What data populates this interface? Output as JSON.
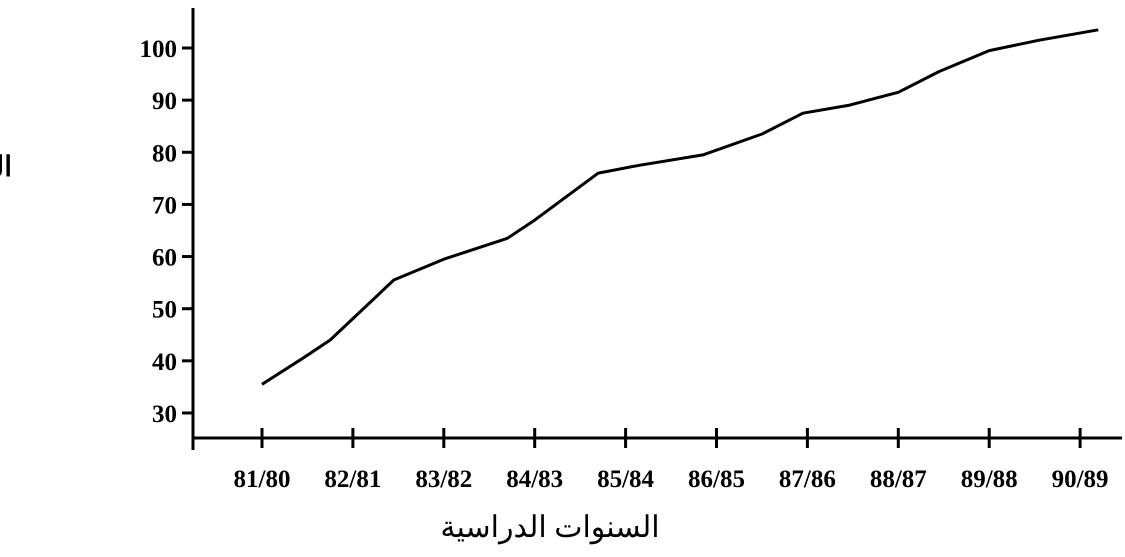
{
  "chart_data": {
    "type": "line",
    "title": "",
    "xlabel": "السنوات الدراسية",
    "ylabel": "الف طالب",
    "categories": [
      "81/80",
      "82/81",
      "83/82",
      "84/83",
      "85/84",
      "86/85",
      "87/86",
      "88/87",
      "89/88",
      "90/89"
    ],
    "yticks": [
      30,
      40,
      50,
      60,
      70,
      80,
      90,
      100
    ],
    "ylim": [
      25,
      105
    ],
    "series": [
      {
        "x": [
          "81/80",
          "81/82 mid",
          "82/81",
          "83/82 left",
          "83/82",
          "84/83 left",
          "84/83",
          "84/83 mid",
          "85/84",
          "85/84 mid",
          "86/85",
          "86/85 mid",
          "87/86 left",
          "87/86",
          "88/87",
          "88/87 mid",
          "89/88",
          "90/89"
        ],
        "values": [
          35.5,
          40.5,
          44,
          55.5,
          59.5,
          63.5,
          67,
          76,
          77.5,
          79.5,
          83.5,
          87.5,
          89,
          91.5,
          95.5,
          99.5,
          101.5,
          103.5
        ]
      }
    ],
    "line_color": "#000000",
    "grid": false
  }
}
